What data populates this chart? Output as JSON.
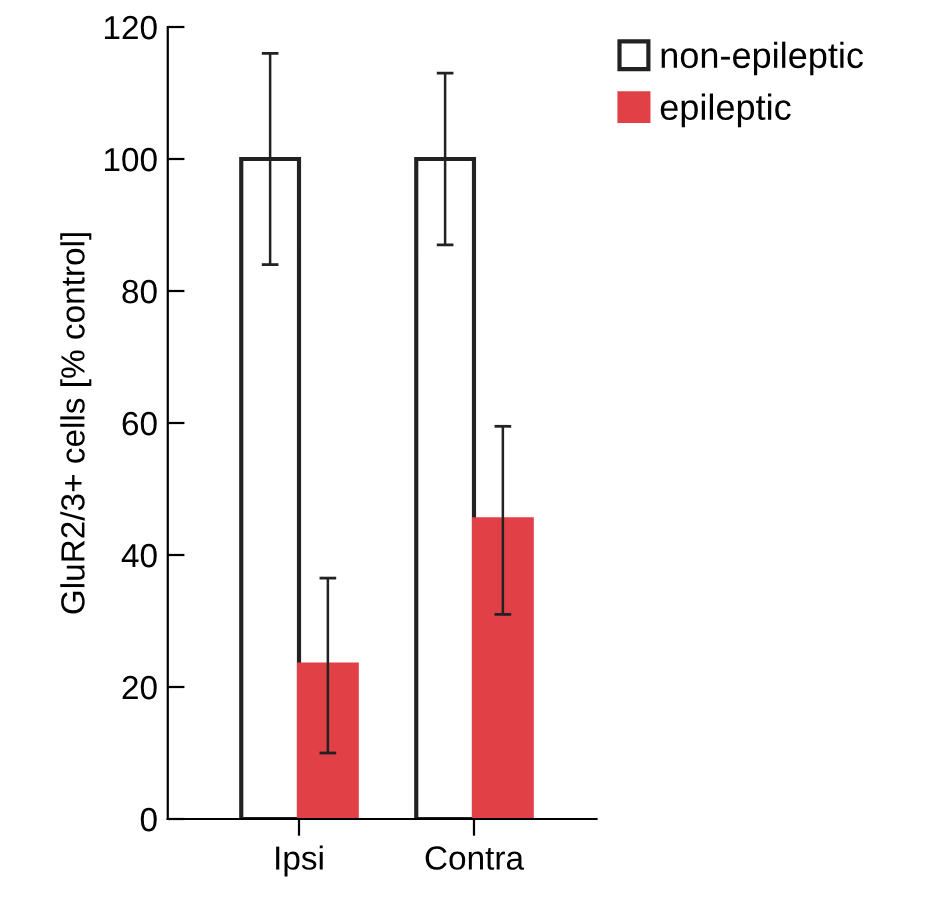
{
  "chart_data": {
    "type": "bar",
    "ylabel": "GluR2/3+ cells [% control]",
    "categories": [
      "Ipsi",
      "Contra"
    ],
    "series": [
      {
        "name": "non-epileptic",
        "color": "#ffffff",
        "values": [
          100,
          100
        ],
        "errors": [
          [
            84,
            116
          ],
          [
            87,
            113
          ]
        ]
      },
      {
        "name": "epileptic",
        "color": "#e04046",
        "values": [
          23.4,
          45.4
        ],
        "errors": [
          [
            10,
            36.5
          ],
          [
            31,
            59.5
          ]
        ]
      }
    ],
    "ylim": [
      0,
      120
    ],
    "yticks": [
      0,
      20,
      40,
      60,
      80,
      100,
      120
    ],
    "grid": false,
    "legend": "top right"
  }
}
